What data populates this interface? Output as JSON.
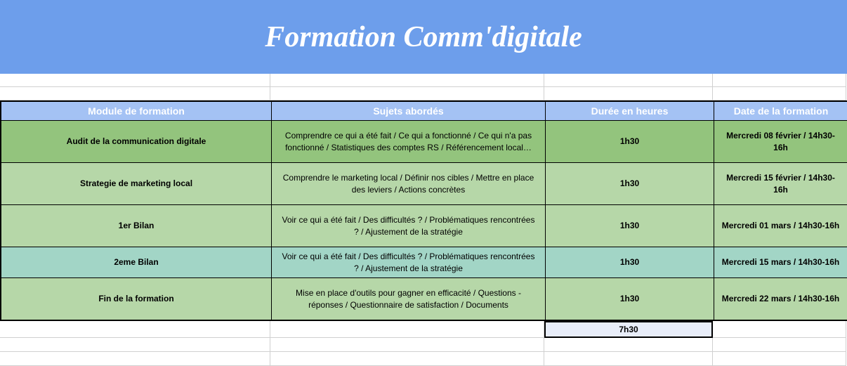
{
  "banner": {
    "title": "Formation Comm'digitale"
  },
  "columns": [
    "Module de formation",
    "Sujets abordés",
    "Durée en heures",
    "Date de la formation"
  ],
  "rows": [
    {
      "variant": "dark",
      "module": "Audit de la communication digitale",
      "subjects": "Comprendre ce qui a été fait / Ce qui a fonctionné / Ce qui n'a pas fonctionné / Statistiques des comptes RS / Référencement local…",
      "duration": "1h30",
      "date": "Mercredi 08 février / 14h30-16h"
    },
    {
      "variant": "light",
      "module": "Strategie de marketing local",
      "subjects": "Comprendre le marketing local / Définir nos cibles / Mettre en place des leviers / Actions concrètes",
      "duration": "1h30",
      "date": "Mercredi 15 février / 14h30-16h"
    },
    {
      "variant": "light",
      "module": "1er Bilan",
      "subjects": "Voir ce qui a été fait / Des difficultés ? / Problématiques rencontrées ? / Ajustement de la stratégie",
      "duration": "1h30",
      "date": "Mercredi 01 mars / 14h30-16h"
    },
    {
      "variant": "teal",
      "module": "2eme Bilan",
      "subjects": "Voir ce qui a été fait / Des difficultés ? / Problématiques rencontrées ? / Ajustement de la stratégie",
      "duration": "1h30",
      "date": "Mercredi 15 mars / 14h30-16h"
    },
    {
      "variant": "light",
      "module": "Fin de la formation",
      "subjects": "Mise en place d'outils pour gagner en efficacité / Questions - réponses / Questionnaire de satisfaction / Documents",
      "duration": "1h30",
      "date": "Mercredi 22 mars / 14h30-16h"
    }
  ],
  "total": {
    "duration": "7h30"
  },
  "colors": {
    "banner_bg": "#6d9eeb",
    "header_bg": "#a4c2f4",
    "row_dark": "#93c47d",
    "row_light": "#b6d7a8",
    "row_teal": "#a2d5c6",
    "total_bg": "#e8edf9"
  }
}
